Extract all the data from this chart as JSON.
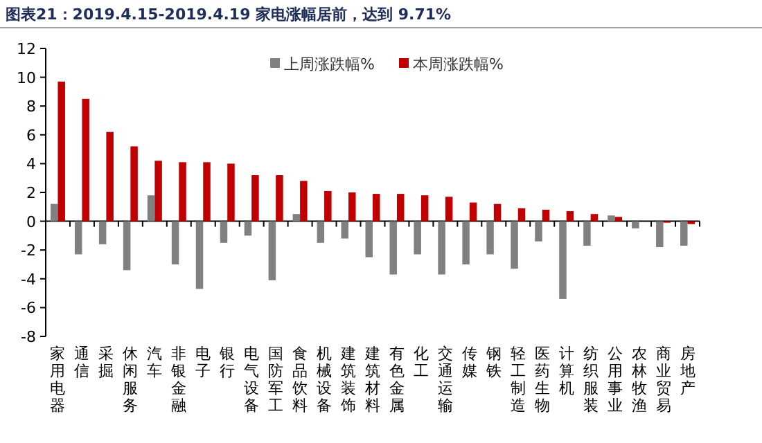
{
  "chart_data": {
    "type": "bar",
    "title": "图表21：2019.4.15-2019.4.19 家电涨幅居前，达到 9.71%",
    "categories": [
      "家用电器",
      "通信",
      "采掘",
      "休闲服务",
      "汽车",
      "非银金融",
      "电子",
      "银行",
      "电气设备",
      "国防军工",
      "食品饮料",
      "机械设备",
      "建筑装饰",
      "建筑材料",
      "有色金属",
      "化工",
      "交通运输",
      "传媒",
      "钢铁",
      "轻工制造",
      "医药生物",
      "计算机",
      "纺织服装",
      "公用事业",
      "农林牧渔",
      "商业贸易",
      "房地产"
    ],
    "series": [
      {
        "name": "上周涨跌幅%",
        "color": "#808080",
        "values": [
          1.2,
          -2.3,
          -1.6,
          -3.4,
          1.8,
          -3.0,
          -4.7,
          -1.5,
          -1.0,
          -4.1,
          0.5,
          -1.5,
          -1.2,
          -2.5,
          -3.7,
          -2.3,
          -3.7,
          -3.0,
          -2.3,
          -3.3,
          -1.4,
          -5.4,
          -1.7,
          0.4,
          -0.5,
          -1.8,
          -1.7
        ]
      },
      {
        "name": "本周涨跌幅%",
        "color": "#c00000",
        "values": [
          9.7,
          8.5,
          6.2,
          5.2,
          4.2,
          4.1,
          4.1,
          4.0,
          3.2,
          3.2,
          2.8,
          2.1,
          2.0,
          1.9,
          1.9,
          1.8,
          1.7,
          1.3,
          1.2,
          0.9,
          0.8,
          0.7,
          0.5,
          0.3,
          0.0,
          -0.1,
          -0.2
        ]
      }
    ],
    "ylim": [
      -8,
      12
    ],
    "yticks": [
      -8,
      -6,
      -4,
      -2,
      0,
      2,
      4,
      6,
      8,
      10,
      12
    ],
    "legend": "top"
  }
}
